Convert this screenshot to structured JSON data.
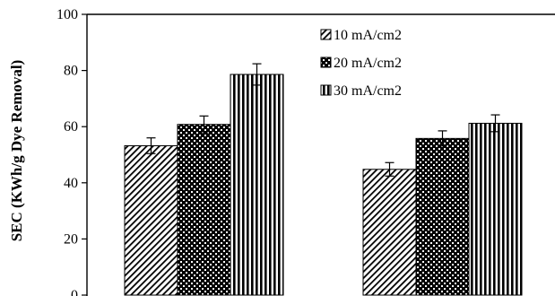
{
  "chart_data": {
    "type": "bar",
    "title": "",
    "xlabel": "",
    "ylabel": "SEC (KWh/g Dye Removal)",
    "ylim": [
      0,
      100
    ],
    "yticks": [
      0,
      20,
      40,
      60,
      80,
      100
    ],
    "categories": [
      "",
      ""
    ],
    "series": [
      {
        "name": "10 mA/cm2",
        "values": [
          53.2,
          44.8
        ],
        "errors": [
          2.8,
          2.4
        ],
        "pattern": "diagonal-hatch"
      },
      {
        "name": "20 mA/cm2",
        "values": [
          60.8,
          55.8
        ],
        "errors": [
          3.0,
          2.7
        ],
        "pattern": "checker"
      },
      {
        "name": "30 mA/cm2",
        "values": [
          78.6,
          61.2
        ],
        "errors": [
          3.8,
          3.0
        ],
        "pattern": "vertical-stripes"
      }
    ],
    "legend_position": "top-right",
    "grid": false
  }
}
